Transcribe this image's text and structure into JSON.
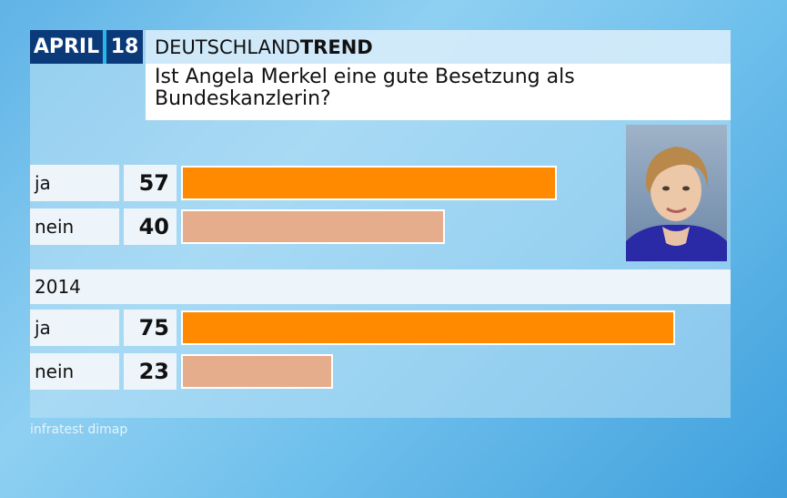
{
  "header": {
    "month": "APRIL",
    "year": "18",
    "brand_prefix": "DEUTSCHLAND",
    "brand_bold": "TREND",
    "question": "Ist Angela Merkel eine gute Besetzung als Bundeskanzlerin?"
  },
  "section_2014": "2014",
  "source": "infratest dimap",
  "colors": {
    "ja": "#ff8a00",
    "nein": "#e6ad8c",
    "header_bg": "#0a3a7a",
    "accent": "#29b6e8"
  },
  "chart_data": [
    {
      "type": "bar",
      "title": "",
      "categories": [
        "ja",
        "nein"
      ],
      "values": [
        57,
        40
      ],
      "xlim": [
        0,
        78
      ]
    },
    {
      "type": "bar",
      "title": "2014",
      "categories": [
        "ja",
        "nein"
      ],
      "values": [
        75,
        23
      ],
      "xlim": [
        0,
        78
      ]
    }
  ]
}
